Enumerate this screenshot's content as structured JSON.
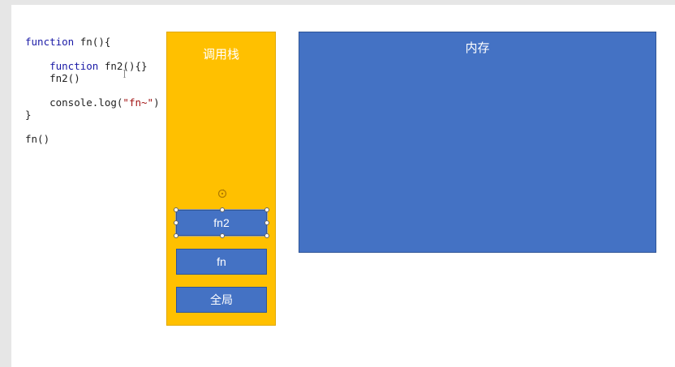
{
  "code": {
    "lines": [
      [
        {
          "t": "function",
          "c": "kw"
        },
        {
          "t": " fn(){",
          "c": ""
        }
      ],
      [],
      [
        {
          "t": "    ",
          "c": ""
        },
        {
          "t": "function",
          "c": "kw"
        },
        {
          "t": " fn2(){}",
          "c": ""
        }
      ],
      [
        {
          "t": "    fn2()",
          "c": ""
        }
      ],
      [],
      [
        {
          "t": "    console.log(",
          "c": ""
        },
        {
          "t": "\"fn~\"",
          "c": "str"
        },
        {
          "t": ")",
          "c": ""
        }
      ],
      [
        {
          "t": "}",
          "c": ""
        }
      ],
      [],
      [
        {
          "t": "fn()",
          "c": ""
        }
      ]
    ]
  },
  "callstack": {
    "title": "调用栈",
    "frames": [
      {
        "label": "fn2",
        "selected": true
      },
      {
        "label": "fn",
        "selected": false
      },
      {
        "label": "全局",
        "selected": false
      }
    ]
  },
  "memory": {
    "title": "内存"
  },
  "colors": {
    "callstack_bg": "#ffc000",
    "frame_bg": "#4472c4",
    "memory_bg": "#4472c4",
    "keyword": "#1a1aa6",
    "string": "#a31515"
  },
  "icons": {
    "rotate_handle": "rotate-icon",
    "cursor": "text-cursor-icon"
  }
}
